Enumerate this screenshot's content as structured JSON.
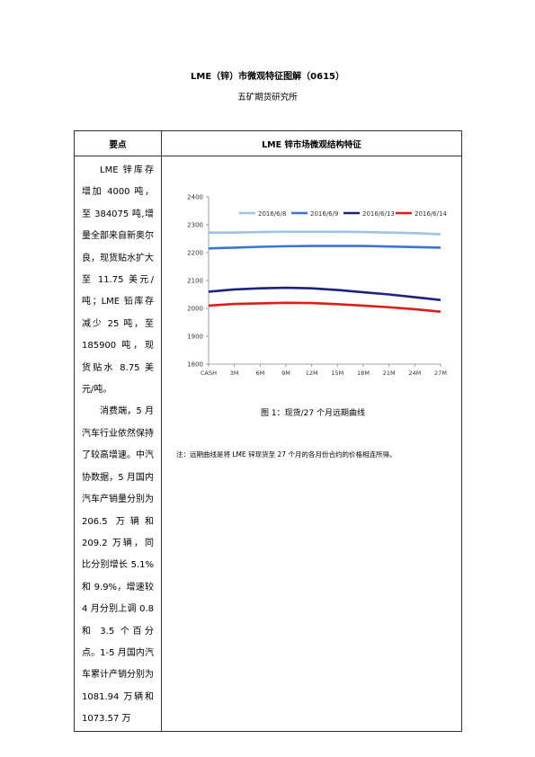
{
  "header": {
    "title": "LME（锌）市微观特征图解（0615）",
    "subtitle": "五矿期货研究所"
  },
  "table": {
    "headers": [
      "要点",
      "LME 锌市场微观结构特征"
    ],
    "paragraphs": [
      "LME 锌库存增加 4000 吨，至 384075 吨,增量全部来自新奥尔良，现货贴水扩大至 11.75 美元/吨；LME 铅库存减少 25 吨，至 185900 吨，现货贴水 8.75 美元/吨。",
      "消费端，5 月汽车行业依然保持了较高增速。中汽协数据，5 月国内汽车产销量分别为 206.5 万辆和 209.2 万辆，同比分别增长 5.1%和 9.9%，增速较 4 月分别上调 0.8 和 3.5 个百分点。1-5 月国内汽车累计产销分别为 1081.94 万辆和 1073.57 万"
    ],
    "caption": "图 1：现货/27 个月远期曲线",
    "note": "注：远期曲线是将 LME 锌现货至 27 个月的各月份合约的价格相连所得。"
  },
  "chart_data": {
    "type": "line",
    "categories": [
      "CASH",
      "3M",
      "6M",
      "9M",
      "12M",
      "15M",
      "18M",
      "21M",
      "24M",
      "27M"
    ],
    "series": [
      {
        "name": "2016/6/8",
        "color": "#9dc3e6",
        "values": [
          2272,
          2272,
          2274,
          2275,
          2275,
          2275,
          2274,
          2272,
          2270,
          2266
        ]
      },
      {
        "name": "2016/6/9",
        "color": "#3a75d6",
        "values": [
          2215,
          2218,
          2221,
          2223,
          2224,
          2224,
          2224,
          2222,
          2220,
          2218
        ]
      },
      {
        "name": "2016/6/13",
        "color": "#1a237e",
        "values": [
          2060,
          2068,
          2072,
          2074,
          2072,
          2066,
          2058,
          2050,
          2040,
          2030
        ]
      },
      {
        "name": "2016/6/14",
        "color": "#e01b1b",
        "values": [
          2010,
          2016,
          2018,
          2020,
          2019,
          2015,
          2010,
          2004,
          1997,
          1988
        ]
      }
    ],
    "ylim": [
      1800,
      2400
    ],
    "yticks": [
      1800,
      1900,
      2000,
      2100,
      2200,
      2300,
      2400
    ]
  }
}
